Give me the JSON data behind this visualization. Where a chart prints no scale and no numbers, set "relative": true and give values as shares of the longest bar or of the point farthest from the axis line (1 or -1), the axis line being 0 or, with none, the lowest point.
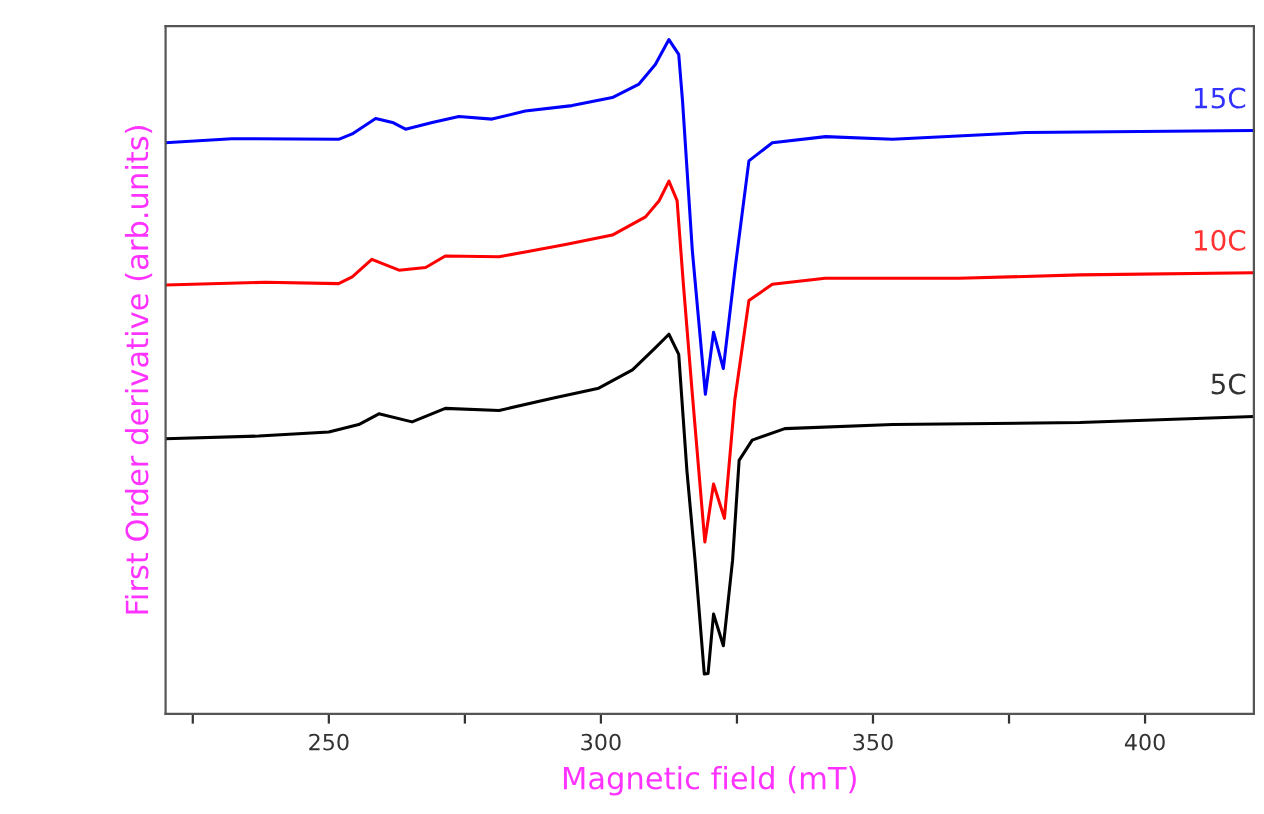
{
  "chart_data": {
    "type": "line",
    "relative": true,
    "xlabel": "Magnetic field (mT)",
    "ylabel": "First Order derivative (arb.units)",
    "xlim": [
      220,
      420
    ],
    "xticks": [
      {
        "value": 225,
        "label": null
      },
      250,
      {
        "value": 275,
        "label": null
      },
      300,
      {
        "value": 325,
        "label": null
      },
      350,
      {
        "value": 375,
        "label": null
      },
      400
    ],
    "grid": false,
    "legend": false,
    "tick_labels": "x",
    "series": [
      {
        "name": "15C",
        "color": "#0000ff",
        "x": [
          220.0,
          232.2,
          251.8,
          254.3,
          258.6,
          261.7,
          264.1,
          269.0,
          273.9,
          280.0,
          286.1,
          294.7,
          302.1,
          307.0,
          310.0,
          312.5,
          314.3,
          315.0,
          316.8,
          319.2,
          320.7,
          322.5,
          324.7,
          327.2,
          331.5,
          341.3,
          353.6,
          378.1,
          419.7
        ],
        "values": [
          0.847,
          0.853,
          0.852,
          0.86,
          0.883,
          0.877,
          0.867,
          0.877,
          0.886,
          0.882,
          0.894,
          0.902,
          0.914,
          0.934,
          0.963,
          1.0,
          0.978,
          0.909,
          0.687,
          0.474,
          0.566,
          0.512,
          0.663,
          0.82,
          0.847,
          0.856,
          0.852,
          0.862,
          0.865
        ]
      },
      {
        "name": "10C",
        "color": "#ff0000",
        "x": [
          220.0,
          238.3,
          251.8,
          254.3,
          257.9,
          262.9,
          267.8,
          271.4,
          281.3,
          286.1,
          293.5,
          302.1,
          308.2,
          310.7,
          312.5,
          314.0,
          315.1,
          316.8,
          319.1,
          320.7,
          322.7,
          324.6,
          327.2,
          331.5,
          341.2,
          365.8,
          388.0,
          419.7
        ],
        "values": [
          0.636,
          0.64,
          0.638,
          0.648,
          0.674,
          0.658,
          0.662,
          0.679,
          0.678,
          0.685,
          0.696,
          0.71,
          0.737,
          0.761,
          0.79,
          0.761,
          0.643,
          0.474,
          0.255,
          0.341,
          0.29,
          0.465,
          0.613,
          0.637,
          0.646,
          0.646,
          0.651,
          0.654
        ]
      },
      {
        "name": "5C",
        "color": "#000000",
        "x": [
          220.0,
          237.1,
          250.0,
          255.5,
          259.2,
          265.3,
          271.4,
          281.3,
          291.1,
          299.6,
          305.8,
          309.9,
          312.5,
          314.3,
          315.8,
          317.3,
          319.0,
          319.7,
          320.7,
          322.5,
          324.2,
          325.4,
          327.8,
          333.8,
          353.6,
          388.0,
          419.7
        ],
        "values": [
          0.408,
          0.412,
          0.418,
          0.429,
          0.445,
          0.433,
          0.453,
          0.45,
          0.468,
          0.483,
          0.51,
          0.542,
          0.563,
          0.533,
          0.361,
          0.228,
          0.059,
          0.06,
          0.148,
          0.101,
          0.228,
          0.376,
          0.406,
          0.423,
          0.429,
          0.432,
          0.441
        ]
      }
    ]
  }
}
